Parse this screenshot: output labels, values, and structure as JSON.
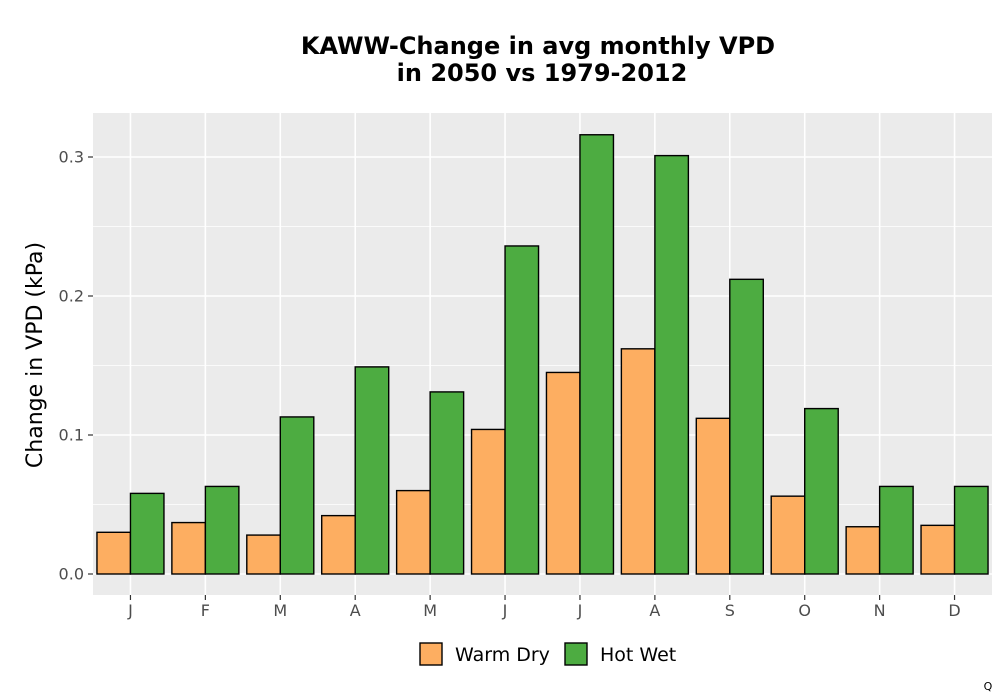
{
  "chart_data": {
    "type": "bar",
    "title_line1": "KAWW-Change in avg monthly VPD",
    "title_line2": "in 2050 vs 1979-2012",
    "xlabel": "",
    "ylabel": "Change in VPD (kPa)",
    "categories": [
      "J",
      "F",
      "M",
      "A",
      "M",
      "J",
      "J",
      "A",
      "S",
      "O",
      "N",
      "D"
    ],
    "series": [
      {
        "name": "Warm Dry",
        "color": "#FDAE61",
        "values": [
          0.03,
          0.037,
          0.028,
          0.042,
          0.06,
          0.104,
          0.145,
          0.162,
          0.112,
          0.056,
          0.034,
          0.035
        ]
      },
      {
        "name": "Hot Wet",
        "color": "#4DAC41",
        "values": [
          0.058,
          0.063,
          0.113,
          0.149,
          0.131,
          0.236,
          0.316,
          0.301,
          0.212,
          0.119,
          0.063,
          0.063
        ]
      }
    ],
    "ylim": [
      -0.015,
      0.333
    ],
    "yticks": [
      0.0,
      0.1,
      0.2,
      0.3
    ],
    "ytick_labels": [
      "0.0",
      "0.1",
      "0.2",
      "0.3"
    ],
    "grid": true,
    "legend_position": "bottom",
    "panel_background": "#EBEBEB",
    "grid_color": "#FFFFFF"
  },
  "footnote": "Q"
}
